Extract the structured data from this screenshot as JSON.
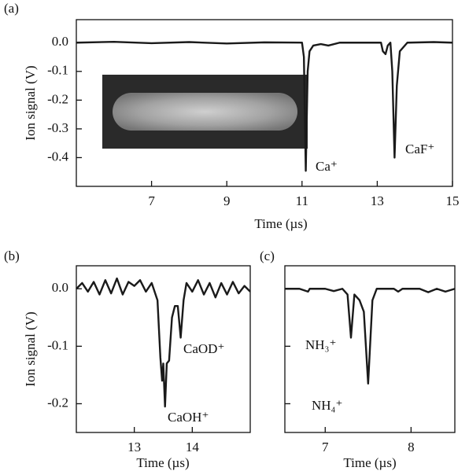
{
  "chart_data": [
    {
      "type": "line",
      "panel_label": "(a)",
      "x_label": "Time (µs)",
      "y_label": "Ion signal (V)",
      "xlim": [
        5,
        15
      ],
      "ylim": [
        -0.5,
        0.08
      ],
      "xticks": [
        7,
        9,
        11,
        13,
        15
      ],
      "yticks": [
        {
          "value": 0,
          "label": "0.0"
        },
        -0.1,
        -0.2,
        -0.3,
        -0.4
      ],
      "x": [
        5,
        6,
        7,
        8,
        9,
        10,
        11.0,
        11.05,
        11.1,
        11.15,
        11.2,
        11.3,
        11.5,
        11.7,
        12,
        13.1,
        13.15,
        13.22,
        13.28,
        13.35,
        13.4,
        13.46,
        13.52,
        13.6,
        13.8,
        14.5,
        15
      ],
      "series": [
        {
          "color": "#1a1a1a",
          "values": [
            0,
            0.003,
            -0.002,
            0.002,
            -0.003,
            0.001,
            0,
            -0.05,
            -0.446,
            -0.1,
            -0.03,
            -0.01,
            -0.005,
            -0.01,
            0,
            0,
            -0.03,
            -0.04,
            -0.01,
            0,
            -0.1,
            -0.4,
            -0.15,
            -0.03,
            0,
            0.002,
            0
          ]
        }
      ],
      "annotations": [
        "Ca⁺",
        "CaF⁺"
      ]
    },
    {
      "type": "line",
      "panel_label": "(b)",
      "x_label": "Time (µs)",
      "y_label": "Ion signal (V)",
      "xlim": [
        12,
        15
      ],
      "ylim": [
        -0.25,
        0.04
      ],
      "xticks": [
        13,
        14
      ],
      "yticks": [
        {
          "value": 0,
          "label": "0.0"
        },
        -0.1,
        -0.2
      ],
      "x": [
        12.0,
        12.1,
        12.2,
        12.3,
        12.4,
        12.5,
        12.6,
        12.7,
        12.8,
        12.9,
        13.0,
        13.1,
        13.2,
        13.3,
        13.4,
        13.45,
        13.48,
        13.5,
        13.53,
        13.56,
        13.6,
        13.65,
        13.7,
        13.75,
        13.8,
        13.85,
        13.9,
        14.0,
        14.1,
        14.2,
        14.3,
        14.4,
        14.5,
        14.6,
        14.7,
        14.8,
        14.9,
        15.0
      ],
      "series": [
        {
          "color": "#1a1a1a",
          "values": [
            0,
            0.01,
            -0.005,
            0.012,
            -0.01,
            0.015,
            -0.008,
            0.018,
            -0.01,
            0.012,
            0.005,
            0.015,
            -0.005,
            0.01,
            -0.02,
            -0.12,
            -0.16,
            -0.13,
            -0.205,
            -0.13,
            -0.125,
            -0.05,
            -0.03,
            -0.03,
            -0.085,
            -0.02,
            0.01,
            -0.005,
            0.015,
            -0.01,
            0.01,
            -0.015,
            0.01,
            -0.01,
            0.012,
            -0.008,
            0.005,
            -0.005
          ]
        }
      ],
      "annotations": [
        "CaOD⁺",
        "CaOH⁺"
      ]
    },
    {
      "type": "line",
      "panel_label": "(c)",
      "x_label": "Time (µs)",
      "xlim": [
        6.53,
        8.51
      ],
      "ylim": [
        -0.25,
        0.04
      ],
      "xticks": [
        7,
        8
      ],
      "yticks": [
        0,
        -0.1,
        -0.2
      ],
      "x": [
        6.53,
        6.7,
        6.8,
        6.82,
        7.0,
        7.1,
        7.2,
        7.26,
        7.3,
        7.34,
        7.4,
        7.45,
        7.5,
        7.55,
        7.6,
        7.8,
        7.85,
        7.9,
        8.1,
        8.2,
        8.3,
        8.4,
        8.51
      ],
      "series": [
        {
          "color": "#1a1a1a",
          "values": [
            0,
            0,
            -0.005,
            0,
            0,
            -0.004,
            0,
            -0.01,
            -0.085,
            -0.01,
            -0.02,
            -0.04,
            -0.165,
            -0.02,
            0,
            0,
            -0.005,
            0,
            0,
            -0.006,
            0,
            -0.005,
            0
          ]
        }
      ],
      "annotations": [
        "NH₃⁺",
        "NH₄⁺"
      ]
    }
  ]
}
